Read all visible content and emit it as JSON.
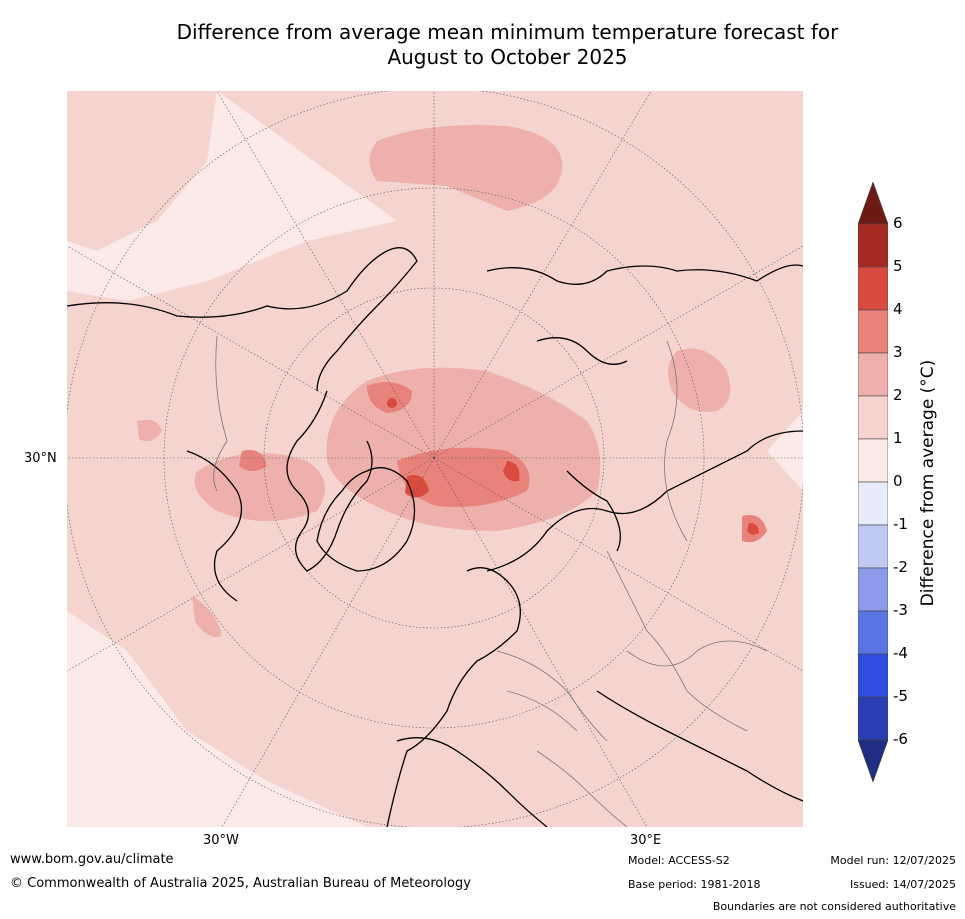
{
  "title": {
    "line1": "Difference from average mean minimum temperature forecast for",
    "line2": "August to October 2025"
  },
  "map": {
    "projection": "north-polar-stereographic",
    "lat_label": "30°N",
    "lon_labels": [
      "30°W",
      "30°E"
    ]
  },
  "colorbar": {
    "label": "Difference from average (°C)",
    "ticks": [
      "6",
      "5",
      "4",
      "3",
      "2",
      "1",
      "0",
      "-1",
      "-2",
      "-3",
      "-4",
      "-5",
      "-6"
    ],
    "colors": [
      "#6e1a14",
      "#a52a22",
      "#d94a3f",
      "#e8837b",
      "#edb0aa",
      "#f5d4cf",
      "#fbeae7",
      "#e8ecfa",
      "#c0c9f2",
      "#8b9bea",
      "#5a74e3",
      "#2e4ee0",
      "#2a3eb3",
      "#1f2d82"
    ]
  },
  "footer": {
    "website": "www.bom.gov.au/climate",
    "copyright": "© Commonwealth of Australia 2025, Australian Bureau of Meteorology",
    "model": "Model: ACCESS-S2",
    "base_period": "Base period: 1981-2018",
    "model_run": "Model run: 12/07/2025",
    "issued": "Issued: 14/07/2025",
    "disclaimer": "Boundaries are not considered authoritative"
  }
}
